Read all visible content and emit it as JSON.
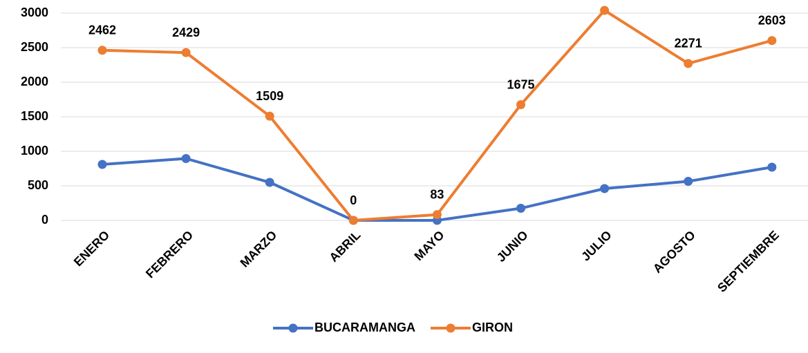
{
  "chart_data": {
    "type": "line",
    "categories": [
      "ENERO",
      "FEBRERO",
      "MARZO",
      "ABRIL",
      "MAYO",
      "JUNIO",
      "JULIO",
      "AGOSTO",
      "SEPTIEMBRE"
    ],
    "series": [
      {
        "name": "BUCARAMANGA",
        "color": "#4472c4",
        "values": [
          810,
          895,
          550,
          0,
          0,
          175,
          460,
          565,
          770
        ]
      },
      {
        "name": "GIRON",
        "color": "#ed7d31",
        "values": [
          2462,
          2429,
          1509,
          0,
          83,
          1675,
          3040,
          2271,
          2603
        ],
        "value_labels": [
          "2462",
          "2429",
          "1509",
          "0",
          "83",
          "1675",
          null,
          "2271",
          "2603"
        ]
      }
    ],
    "ylim": [
      0,
      3000
    ],
    "yticks": [
      0,
      500,
      1000,
      1500,
      2000,
      2500,
      3000
    ],
    "grid": true,
    "legend": "bottom"
  }
}
